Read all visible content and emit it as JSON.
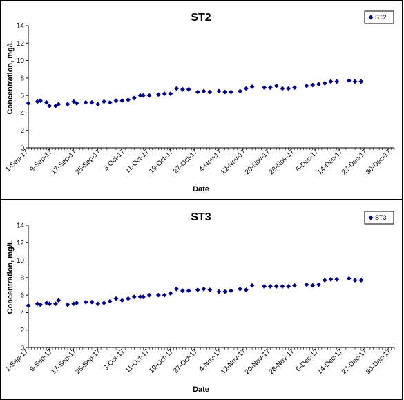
{
  "chart_data": [
    {
      "type": "scatter",
      "title": "ST2",
      "xlabel": "Date",
      "ylabel": "Concentration, mg/L",
      "ylim": [
        0,
        14
      ],
      "yticks": [
        0,
        2,
        4,
        6,
        8,
        10,
        12,
        14
      ],
      "xlim": [
        "2017-09-01",
        "2017-12-31"
      ],
      "xtick_labels": [
        "1-Sep-17",
        "9-Sep-17",
        "17-Sep-17",
        "25-Sep-17",
        "3-Oct-17",
        "11-Oct-17",
        "19-Oct-17",
        "27-Oct-17",
        "4-Nov-17",
        "12-Nov-17",
        "20-Nov-17",
        "28-Nov-17",
        "6-Dec-17",
        "14-Dec-17",
        "22-Dec-17",
        "30-Dec-17"
      ],
      "xtick_dates": [
        "2017-09-01",
        "2017-09-09",
        "2017-09-17",
        "2017-09-25",
        "2017-10-03",
        "2017-10-11",
        "2017-10-19",
        "2017-10-27",
        "2017-11-04",
        "2017-11-12",
        "2017-11-20",
        "2017-11-28",
        "2017-12-06",
        "2017-12-14",
        "2017-12-22",
        "2017-12-30"
      ],
      "grid": false,
      "legend": "top-right",
      "marker_color": "#000080",
      "series": [
        {
          "name": "ST2",
          "points": [
            [
              "2017-09-01",
              5.1
            ],
            [
              "2017-09-04",
              5.3
            ],
            [
              "2017-09-05",
              5.4
            ],
            [
              "2017-09-07",
              5.2
            ],
            [
              "2017-09-08",
              4.8
            ],
            [
              "2017-09-10",
              4.8
            ],
            [
              "2017-09-11",
              5.0
            ],
            [
              "2017-09-14",
              5.0
            ],
            [
              "2017-09-16",
              5.3
            ],
            [
              "2017-09-17",
              5.1
            ],
            [
              "2017-09-20",
              5.2
            ],
            [
              "2017-09-22",
              5.2
            ],
            [
              "2017-09-24",
              5.0
            ],
            [
              "2017-09-26",
              5.3
            ],
            [
              "2017-09-28",
              5.2
            ],
            [
              "2017-09-30",
              5.4
            ],
            [
              "2017-10-02",
              5.4
            ],
            [
              "2017-10-04",
              5.5
            ],
            [
              "2017-10-06",
              5.7
            ],
            [
              "2017-10-08",
              6.0
            ],
            [
              "2017-10-09",
              6.0
            ],
            [
              "2017-10-11",
              6.0
            ],
            [
              "2017-10-14",
              6.1
            ],
            [
              "2017-10-16",
              6.2
            ],
            [
              "2017-10-18",
              6.2
            ],
            [
              "2017-10-20",
              6.8
            ],
            [
              "2017-10-22",
              6.7
            ],
            [
              "2017-10-24",
              6.7
            ],
            [
              "2017-10-27",
              6.4
            ],
            [
              "2017-10-29",
              6.5
            ],
            [
              "2017-10-31",
              6.4
            ],
            [
              "2017-11-03",
              6.5
            ],
            [
              "2017-11-05",
              6.4
            ],
            [
              "2017-11-07",
              6.4
            ],
            [
              "2017-11-10",
              6.5
            ],
            [
              "2017-11-12",
              6.8
            ],
            [
              "2017-11-14",
              7.0
            ],
            [
              "2017-11-18",
              6.9
            ],
            [
              "2017-11-20",
              6.9
            ],
            [
              "2017-11-22",
              7.1
            ],
            [
              "2017-11-24",
              6.8
            ],
            [
              "2017-11-26",
              6.8
            ],
            [
              "2017-11-28",
              6.9
            ],
            [
              "2017-12-02",
              7.1
            ],
            [
              "2017-12-04",
              7.2
            ],
            [
              "2017-12-06",
              7.3
            ],
            [
              "2017-12-08",
              7.4
            ],
            [
              "2017-12-10",
              7.6
            ],
            [
              "2017-12-12",
              7.6
            ],
            [
              "2017-12-16",
              7.7
            ],
            [
              "2017-12-18",
              7.6
            ],
            [
              "2017-12-20",
              7.6
            ]
          ]
        }
      ]
    },
    {
      "type": "scatter",
      "title": "ST3",
      "xlabel": "Date",
      "ylabel": "Concentration, mg/L",
      "ylim": [
        0,
        14
      ],
      "yticks": [
        0,
        2,
        4,
        6,
        8,
        10,
        12,
        14
      ],
      "xlim": [
        "2017-09-01",
        "2017-12-31"
      ],
      "xtick_labels": [
        "1-Sep-17",
        "9-Sep-17",
        "17-Sep-17",
        "25-Sep-17",
        "3-Oct-17",
        "11-Oct-17",
        "19-Oct-17",
        "27-Oct-17",
        "4-Nov-17",
        "12-Nov-17",
        "20-Nov-17",
        "28-Nov-17",
        "6-Dec-17",
        "14-Dec-17",
        "22-Dec-17",
        "30-Dec-17"
      ],
      "xtick_dates": [
        "2017-09-01",
        "2017-09-09",
        "2017-09-17",
        "2017-09-25",
        "2017-10-03",
        "2017-10-11",
        "2017-10-19",
        "2017-10-27",
        "2017-11-04",
        "2017-11-12",
        "2017-11-20",
        "2017-11-28",
        "2017-12-06",
        "2017-12-14",
        "2017-12-22",
        "2017-12-30"
      ],
      "grid": false,
      "legend": "top-right",
      "marker_color": "#000080",
      "series": [
        {
          "name": "ST3",
          "points": [
            [
              "2017-09-01",
              4.8
            ],
            [
              "2017-09-04",
              5.0
            ],
            [
              "2017-09-05",
              4.9
            ],
            [
              "2017-09-07",
              5.1
            ],
            [
              "2017-09-08",
              5.0
            ],
            [
              "2017-09-10",
              5.0
            ],
            [
              "2017-09-11",
              5.4
            ],
            [
              "2017-09-14",
              4.9
            ],
            [
              "2017-09-16",
              5.0
            ],
            [
              "2017-09-17",
              5.1
            ],
            [
              "2017-09-20",
              5.2
            ],
            [
              "2017-09-22",
              5.2
            ],
            [
              "2017-09-24",
              5.0
            ],
            [
              "2017-09-26",
              5.1
            ],
            [
              "2017-09-28",
              5.3
            ],
            [
              "2017-09-30",
              5.6
            ],
            [
              "2017-10-02",
              5.4
            ],
            [
              "2017-10-04",
              5.6
            ],
            [
              "2017-10-06",
              5.8
            ],
            [
              "2017-10-08",
              5.8
            ],
            [
              "2017-10-09",
              5.8
            ],
            [
              "2017-10-11",
              6.0
            ],
            [
              "2017-10-14",
              6.0
            ],
            [
              "2017-10-16",
              6.0
            ],
            [
              "2017-10-18",
              6.2
            ],
            [
              "2017-10-20",
              6.7
            ],
            [
              "2017-10-22",
              6.5
            ],
            [
              "2017-10-24",
              6.5
            ],
            [
              "2017-10-27",
              6.6
            ],
            [
              "2017-10-29",
              6.7
            ],
            [
              "2017-10-31",
              6.6
            ],
            [
              "2017-11-03",
              6.4
            ],
            [
              "2017-11-05",
              6.4
            ],
            [
              "2017-11-07",
              6.5
            ],
            [
              "2017-11-10",
              6.7
            ],
            [
              "2017-11-12",
              6.6
            ],
            [
              "2017-11-14",
              7.1
            ],
            [
              "2017-11-18",
              7.0
            ],
            [
              "2017-11-20",
              7.0
            ],
            [
              "2017-11-22",
              7.0
            ],
            [
              "2017-11-24",
              7.0
            ],
            [
              "2017-11-26",
              7.0
            ],
            [
              "2017-11-28",
              7.1
            ],
            [
              "2017-12-02",
              7.2
            ],
            [
              "2017-12-04",
              7.1
            ],
            [
              "2017-12-06",
              7.2
            ],
            [
              "2017-12-08",
              7.7
            ],
            [
              "2017-12-10",
              7.8
            ],
            [
              "2017-12-12",
              7.8
            ],
            [
              "2017-12-16",
              7.9
            ],
            [
              "2017-12-18",
              7.7
            ],
            [
              "2017-12-20",
              7.7
            ]
          ]
        }
      ]
    }
  ]
}
